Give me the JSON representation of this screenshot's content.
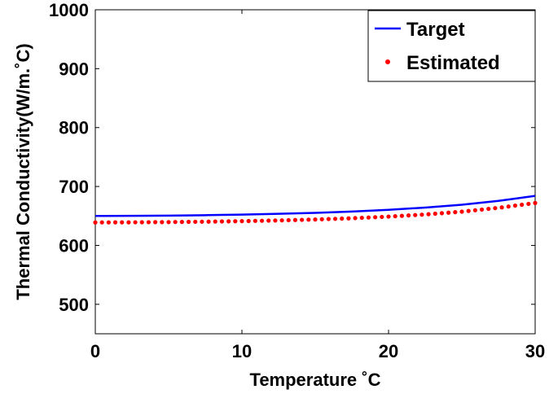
{
  "chart_data": {
    "type": "line",
    "title": "",
    "xlabel": "Temperature ˚C",
    "ylabel": "Thermal Conductivity(W/m.˚C)",
    "xlim": [
      0,
      30
    ],
    "ylim": [
      450,
      1000
    ],
    "x_ticks": [
      0,
      10,
      20,
      30
    ],
    "y_ticks": [
      500,
      600,
      700,
      800,
      900,
      1000
    ],
    "grid": false,
    "legend_position": "top-right",
    "series": [
      {
        "name": "Target",
        "style": "solid-line",
        "color": "#0000ff",
        "x": [
          0,
          2.5,
          5,
          7.5,
          10,
          12.5,
          15,
          17.5,
          20,
          22.5,
          25,
          27.5,
          30
        ],
        "y": [
          650,
          650.2,
          650.6,
          651.3,
          652.3,
          653.6,
          655.2,
          657.5,
          660.4,
          664.2,
          669,
          675.6,
          684
        ]
      },
      {
        "name": "Estimated",
        "style": "dotted",
        "color": "#ff0000",
        "x": [
          0,
          2.5,
          5,
          7.5,
          10,
          12.5,
          15,
          17.5,
          20,
          22.5,
          25,
          27.5,
          30
        ],
        "y": [
          639,
          639.2,
          639.6,
          640.3,
          641.2,
          642.4,
          644,
          646.1,
          648.9,
          652.5,
          657.3,
          663.8,
          672
        ]
      }
    ]
  }
}
